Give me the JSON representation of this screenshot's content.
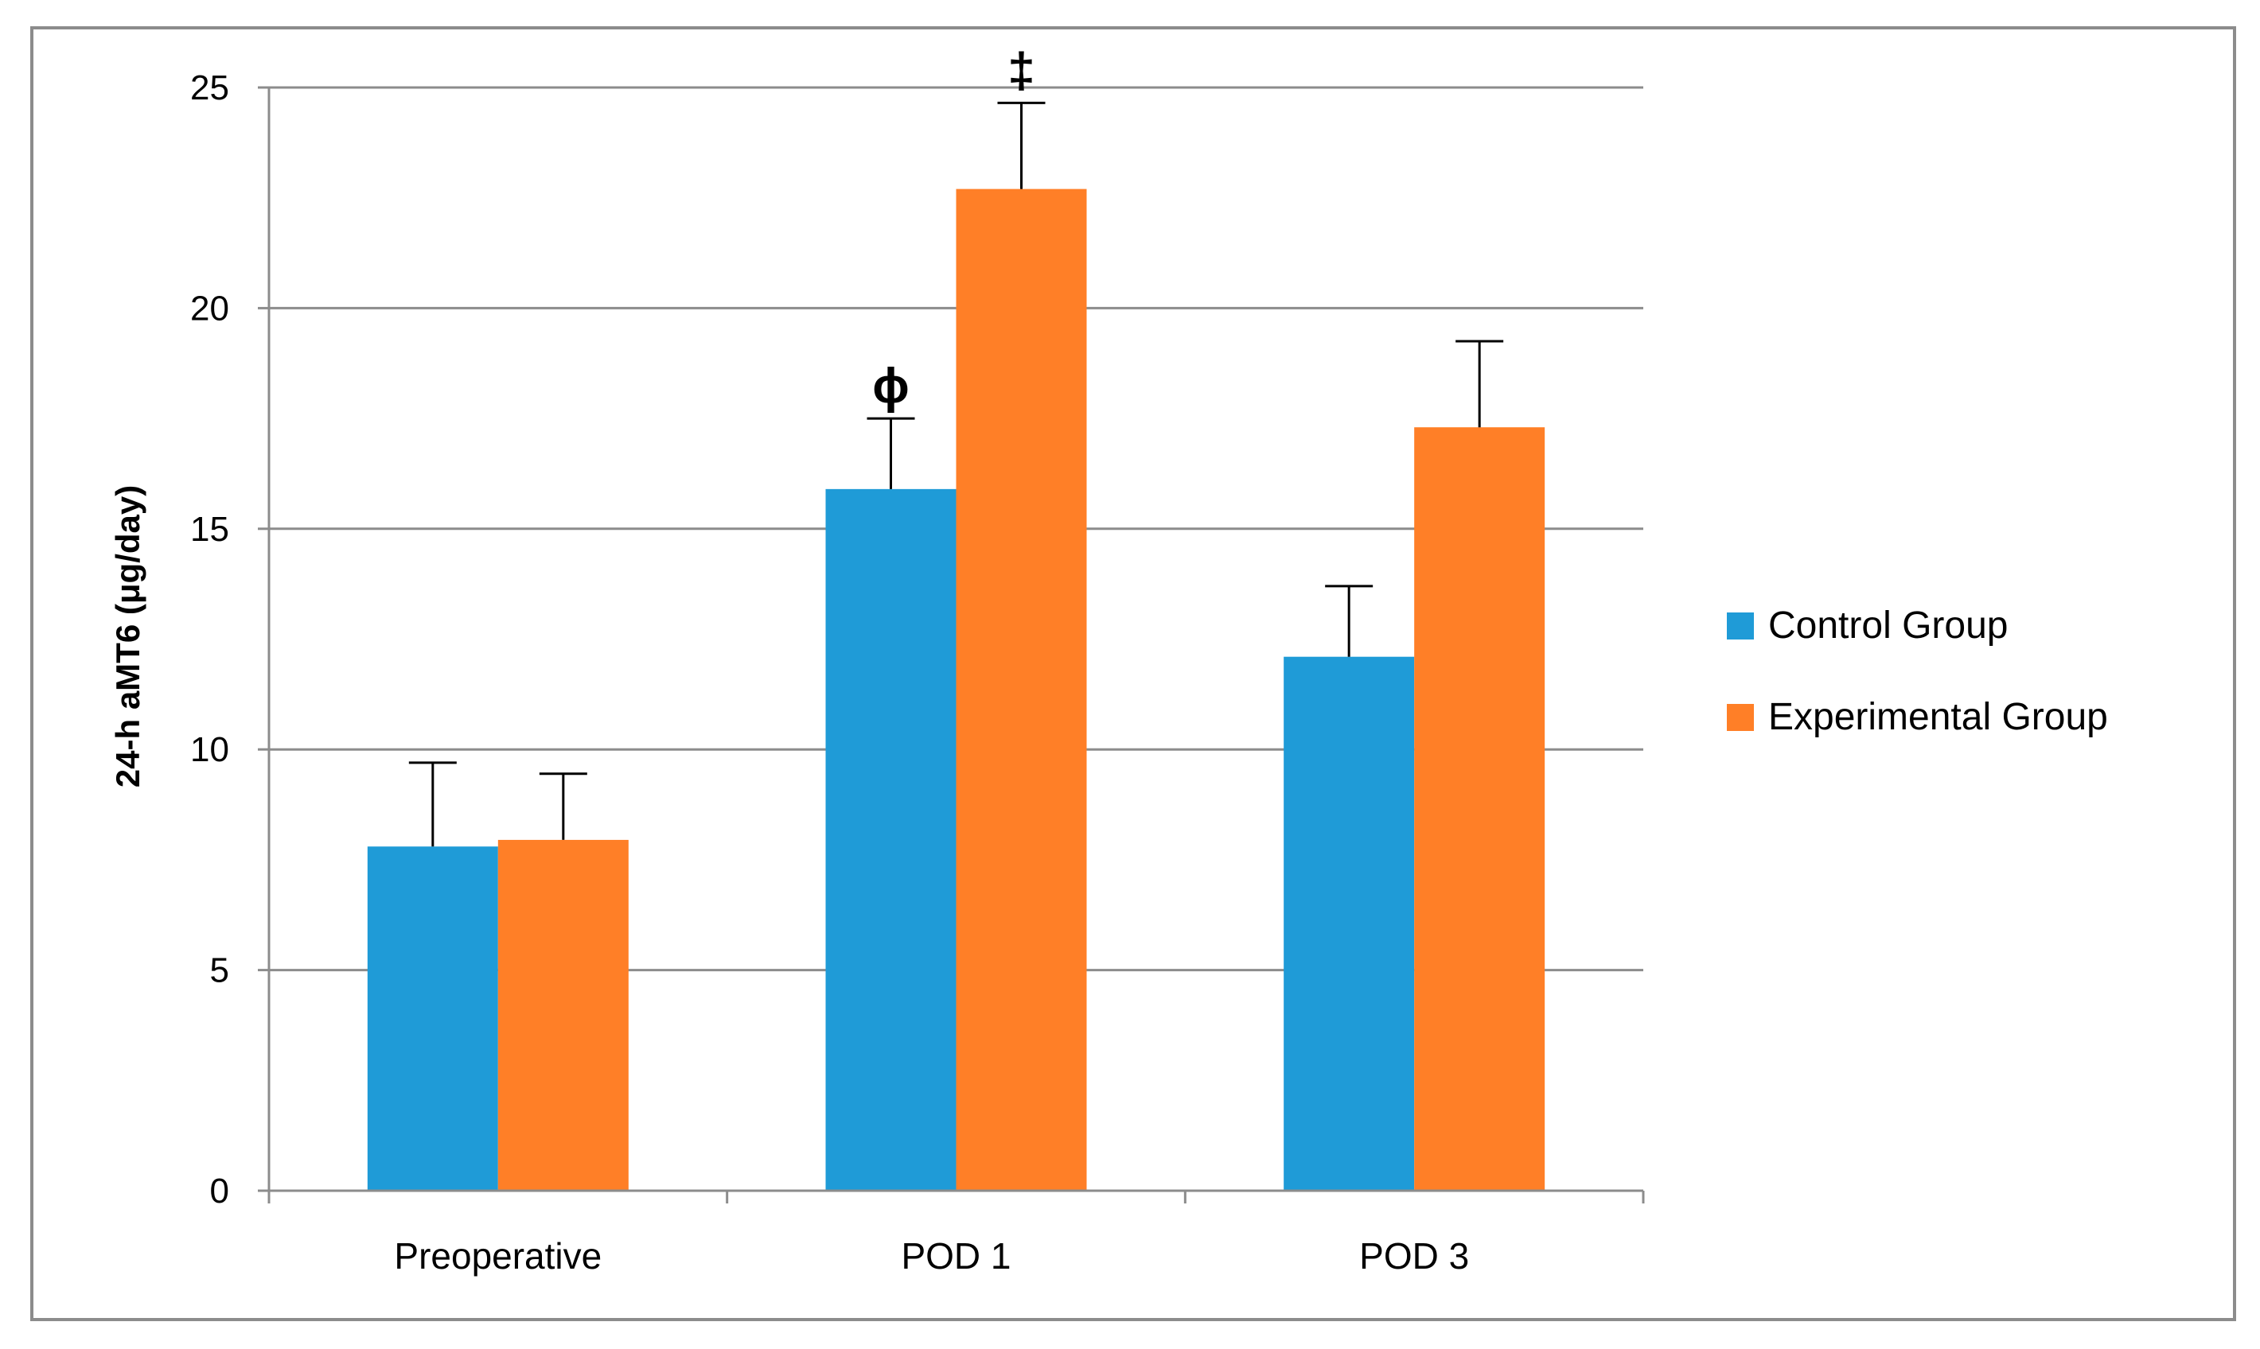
{
  "chart_data": {
    "type": "bar",
    "title": "",
    "xlabel": "",
    "ylabel": "24-h aMT6 (μg/day)",
    "ylim": [
      0,
      25
    ],
    "yticks": [
      "0",
      "5",
      "10",
      "15",
      "20",
      "25"
    ],
    "ytick_values": [
      0,
      5,
      10,
      15,
      20,
      25
    ],
    "categories": [
      "Preoperative",
      "POD 1",
      "POD 3"
    ],
    "series": [
      {
        "name": "Control Group",
        "color": "#1F9BD7",
        "values": [
          7.8,
          15.9,
          12.1
        ],
        "errors": [
          1.9,
          1.6,
          1.6
        ],
        "annotations": [
          "",
          "ϕ",
          ""
        ]
      },
      {
        "name": "Experimental Group",
        "color": "#FF7F27",
        "values": [
          7.95,
          22.7,
          17.3
        ],
        "errors": [
          1.5,
          1.95,
          1.95
        ],
        "annotations": [
          "",
          "‡",
          ""
        ]
      }
    ],
    "grid": true,
    "legend": "right"
  }
}
